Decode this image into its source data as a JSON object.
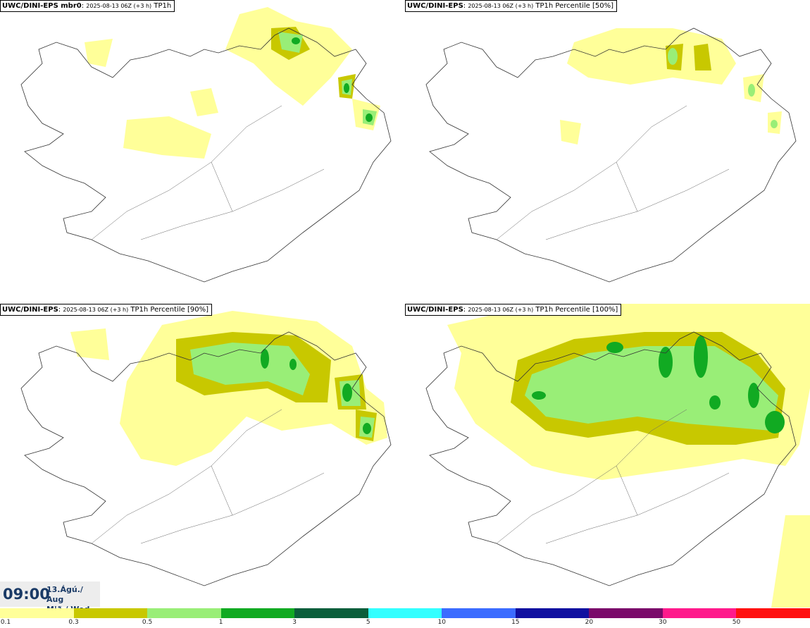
{
  "panels": [
    {
      "model": "UWC/DINI-EPS mbr0",
      "run": "2025-08-13 06Z (+3 h)",
      "field": "TP1h"
    },
    {
      "model": "UWC/DINI-EPS",
      "run": "2025-08-13 06Z (+3 h)",
      "field": "TP1h Percentile [50%]"
    },
    {
      "model": "UWC/DINI-EPS",
      "run": "2025-08-13 06Z (+3 h)",
      "field": "TP1h Percentile [90%]"
    },
    {
      "model": "UWC/DINI-EPS",
      "run": "2025-08-13 06Z (+3 h)",
      "field": "TP1h Percentile [100%]"
    }
  ],
  "valid_time": {
    "time": "09:00",
    "date_line1": "13.Ágú./ Aug",
    "date_line2": "Mið./ Wed"
  },
  "legend": {
    "colors": [
      "#ffff99",
      "#c8c800",
      "#99ee77",
      "#11aa22",
      "#0b5e3b",
      "#33ffff",
      "#3b6cff",
      "#1010a0",
      "#7a0a6a",
      "#ff1a8c",
      "#ff1111"
    ],
    "labels": [
      "0.1",
      "0.3",
      "0.5",
      "1",
      "3",
      "5",
      "10",
      "15",
      "20",
      "30",
      "50"
    ]
  }
}
